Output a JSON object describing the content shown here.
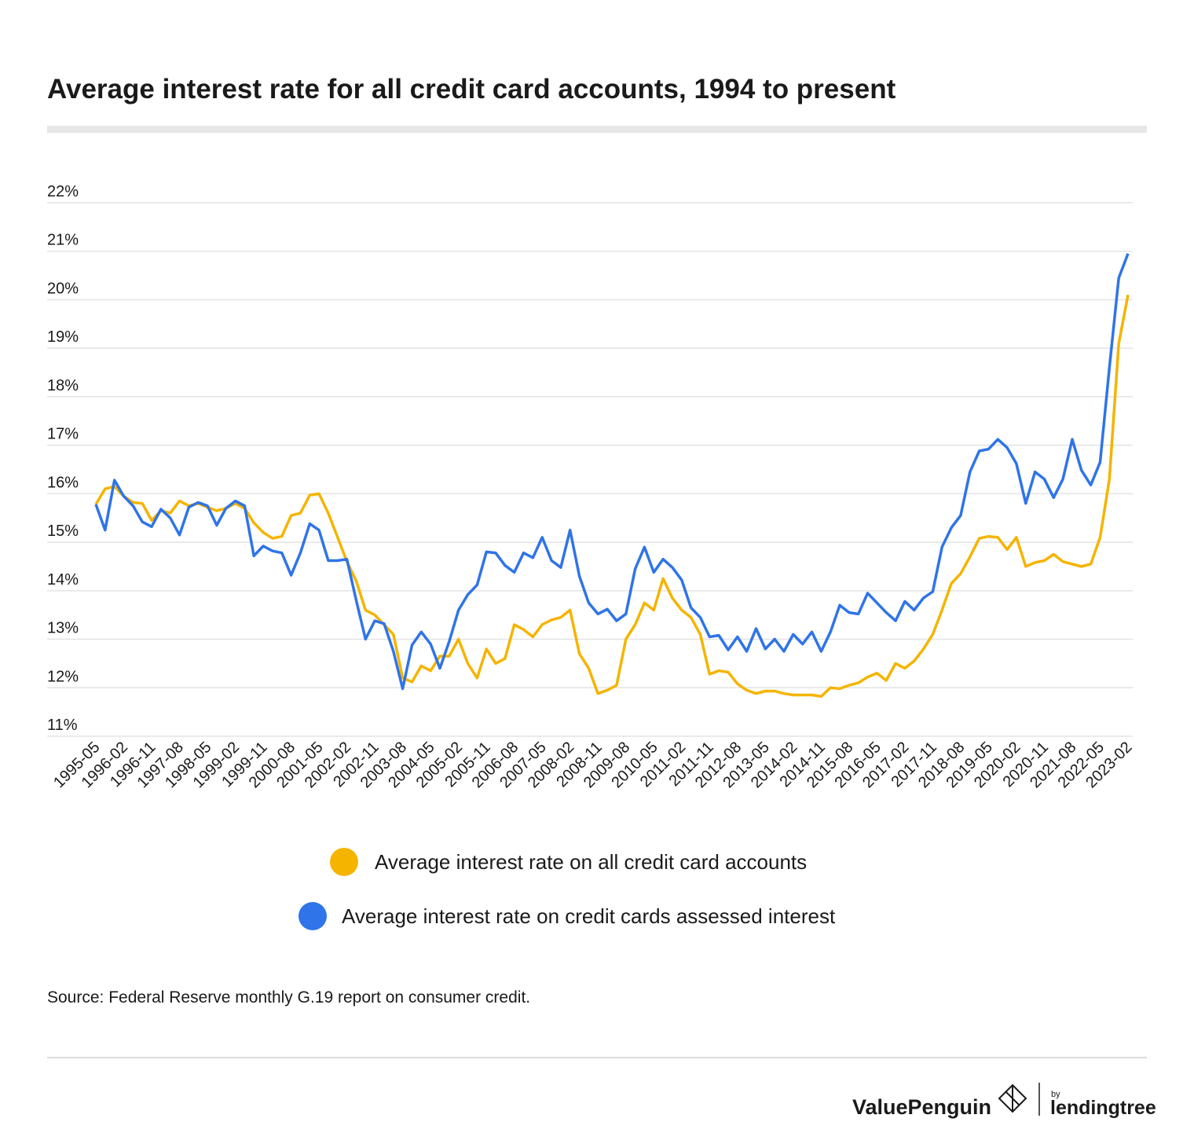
{
  "chart_data": {
    "type": "line",
    "title": "Average interest rate for all credit card accounts, 1994 to present",
    "source": "Source: Federal Reserve monthly G.19 report on consumer credit.",
    "brand": {
      "name": "ValuePenguin",
      "by": "by",
      "partner": "lendingtree"
    },
    "categories": [
      "1995-05",
      null,
      null,
      "1996-02",
      null,
      null,
      "1996-11",
      null,
      null,
      "1997-08",
      null,
      null,
      "1998-05",
      null,
      null,
      "1999-02",
      null,
      null,
      "1999-11",
      null,
      null,
      "2000-08",
      null,
      null,
      "2001-05",
      null,
      null,
      "2002-02",
      null,
      null,
      "2002-11",
      null,
      null,
      "2003-08",
      null,
      null,
      "2004-05",
      null,
      null,
      "2005-02",
      null,
      null,
      "2005-11",
      null,
      null,
      "2006-08",
      null,
      null,
      "2007-05",
      null,
      null,
      "2008-02",
      null,
      null,
      "2008-11",
      null,
      null,
      "2009-08",
      null,
      null,
      "2010-05",
      null,
      null,
      "2011-02",
      null,
      null,
      "2011-11",
      null,
      null,
      "2012-08",
      null,
      null,
      "2013-05",
      null,
      null,
      "2014-02",
      null,
      null,
      "2014-11",
      null,
      null,
      "2015-08",
      null,
      null,
      "2016-05",
      null,
      null,
      "2017-02",
      null,
      null,
      "2017-11",
      null,
      null,
      "2018-08",
      null,
      null,
      "2019-05",
      null,
      null,
      "2020-02",
      null,
      null,
      "2020-11",
      null,
      null,
      "2021-08",
      null,
      null,
      "2022-05",
      null,
      null,
      "2023-02"
    ],
    "series": [
      {
        "name": "Average interest rate on all credit card accounts",
        "color": "#f5b400",
        "values": [
          15.78,
          16.1,
          16.15,
          15.95,
          15.82,
          15.8,
          15.45,
          15.65,
          15.6,
          15.85,
          15.75,
          15.8,
          15.72,
          15.65,
          15.7,
          15.8,
          15.7,
          15.4,
          15.2,
          15.08,
          15.12,
          15.55,
          15.6,
          15.97,
          16.0,
          15.6,
          15.1,
          14.6,
          14.2,
          13.6,
          13.5,
          13.3,
          13.1,
          12.2,
          12.12,
          12.45,
          12.35,
          12.65,
          12.65,
          13.0,
          12.5,
          12.2,
          12.8,
          12.5,
          12.6,
          13.3,
          13.2,
          13.05,
          13.3,
          13.4,
          13.45,
          13.6,
          12.7,
          12.4,
          11.88,
          11.95,
          12.05,
          13.0,
          13.3,
          13.75,
          13.6,
          14.25,
          13.85,
          13.6,
          13.45,
          13.1,
          12.28,
          12.35,
          12.32,
          12.08,
          11.95,
          11.88,
          11.93,
          11.93,
          11.88,
          11.85,
          11.85,
          11.85,
          11.82,
          12.0,
          11.98,
          12.05,
          12.1,
          12.22,
          12.3,
          12.15,
          12.5,
          12.4,
          12.55,
          12.8,
          13.1,
          13.6,
          14.15,
          14.35,
          14.7,
          15.08,
          15.12,
          15.1,
          14.85,
          15.1,
          14.5,
          14.58,
          14.62,
          14.75,
          14.6,
          14.55,
          14.5,
          14.55,
          15.1,
          16.3,
          19.1,
          20.1
        ]
      },
      {
        "name": "Average interest rate on credit cards assessed interest",
        "color": "#2f74e8",
        "values": [
          15.78,
          15.25,
          16.28,
          15.95,
          15.75,
          15.42,
          15.32,
          15.68,
          15.5,
          15.15,
          15.72,
          15.82,
          15.75,
          15.35,
          15.7,
          15.85,
          15.75,
          14.72,
          14.92,
          14.82,
          14.78,
          14.32,
          14.78,
          15.38,
          15.25,
          14.62,
          14.62,
          14.65,
          13.8,
          13.0,
          13.38,
          13.32,
          12.75,
          11.98,
          12.88,
          13.15,
          12.9,
          12.4,
          12.95,
          13.6,
          13.92,
          14.12,
          14.8,
          14.78,
          14.52,
          14.38,
          14.78,
          14.68,
          15.1,
          14.62,
          14.48,
          15.25,
          14.3,
          13.75,
          13.52,
          13.62,
          13.38,
          13.52,
          14.45,
          14.9,
          14.38,
          14.65,
          14.48,
          14.22,
          13.65,
          13.45,
          13.05,
          13.08,
          12.78,
          13.05,
          12.75,
          13.22,
          12.8,
          13.0,
          12.75,
          13.1,
          12.9,
          13.15,
          12.75,
          13.15,
          13.7,
          13.55,
          13.52,
          13.95,
          13.75,
          13.55,
          13.38,
          13.78,
          13.6,
          13.85,
          13.98,
          14.9,
          15.3,
          15.55,
          16.45,
          16.88,
          16.92,
          17.12,
          16.95,
          16.62,
          15.8,
          16.45,
          16.3,
          15.92,
          16.3,
          17.12,
          16.48,
          16.18,
          16.65,
          18.6,
          20.45,
          20.95
        ]
      }
    ],
    "ylim": [
      11,
      22
    ],
    "yticks": [
      {
        "value": 11,
        "label": "11%"
      },
      {
        "value": 12,
        "label": "12%"
      },
      {
        "value": 13,
        "label": "13%"
      },
      {
        "value": 14,
        "label": "14%"
      },
      {
        "value": 15,
        "label": "15%"
      },
      {
        "value": 16,
        "label": "16%"
      },
      {
        "value": 17,
        "label": "17%"
      },
      {
        "value": 18,
        "label": "18%"
      },
      {
        "value": 19,
        "label": "19%"
      },
      {
        "value": 20,
        "label": "20%"
      },
      {
        "value": 21,
        "label": "21%"
      },
      {
        "value": 22,
        "label": "22%"
      }
    ],
    "grid": true
  }
}
